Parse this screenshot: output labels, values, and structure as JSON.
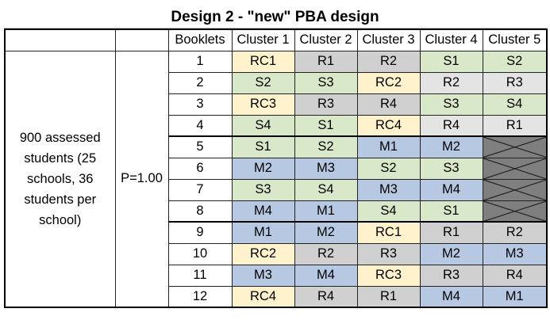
{
  "title": "Design 2 - \"new\" PBA design",
  "population_label": "900 assessed students (25 schools, 36 students per school)",
  "probability_label": "P=1.00",
  "headers": [
    "Booklets",
    "Cluster 1",
    "Cluster 2",
    "Cluster 3",
    "Cluster 4",
    "Cluster 5"
  ],
  "not_applicable_label": "not administered",
  "colors": {
    "RC": "#fff2cc",
    "R": "#d0d0d0",
    "S": "#d9e8c8",
    "M": "#b7c9e2",
    "R_light": "#e4e4e4",
    "na": "#7f7f7f",
    "border": "#222222"
  },
  "rows": [
    {
      "booklet": "1",
      "clusters": [
        "RC1",
        "R1",
        "R2",
        "S1",
        "S2"
      ]
    },
    {
      "booklet": "2",
      "clusters": [
        "S2",
        "S3",
        "RC2",
        "R2",
        "R3"
      ]
    },
    {
      "booklet": "3",
      "clusters": [
        "RC3",
        "R3",
        "R4",
        "S3",
        "S4"
      ]
    },
    {
      "booklet": "4",
      "clusters": [
        "S4",
        "S1",
        "RC4",
        "R4",
        "R1"
      ]
    },
    {
      "booklet": "5",
      "clusters": [
        "S1",
        "S2",
        "M1",
        "M2",
        null
      ]
    },
    {
      "booklet": "6",
      "clusters": [
        "M2",
        "M3",
        "S2",
        "S3",
        null
      ]
    },
    {
      "booklet": "7",
      "clusters": [
        "S3",
        "S4",
        "M3",
        "M4",
        null
      ]
    },
    {
      "booklet": "8",
      "clusters": [
        "M4",
        "M1",
        "S4",
        "S1",
        null
      ]
    },
    {
      "booklet": "9",
      "clusters": [
        "M1",
        "M2",
        "RC1",
        "R1",
        "R2"
      ]
    },
    {
      "booklet": "10",
      "clusters": [
        "RC2",
        "R2",
        "R3",
        "M2",
        "M3"
      ]
    },
    {
      "booklet": "11",
      "clusters": [
        "M3",
        "M4",
        "RC3",
        "R3",
        "R4"
      ]
    },
    {
      "booklet": "12",
      "clusters": [
        "RC4",
        "R4",
        "R1",
        "M4",
        "M1"
      ]
    }
  ]
}
